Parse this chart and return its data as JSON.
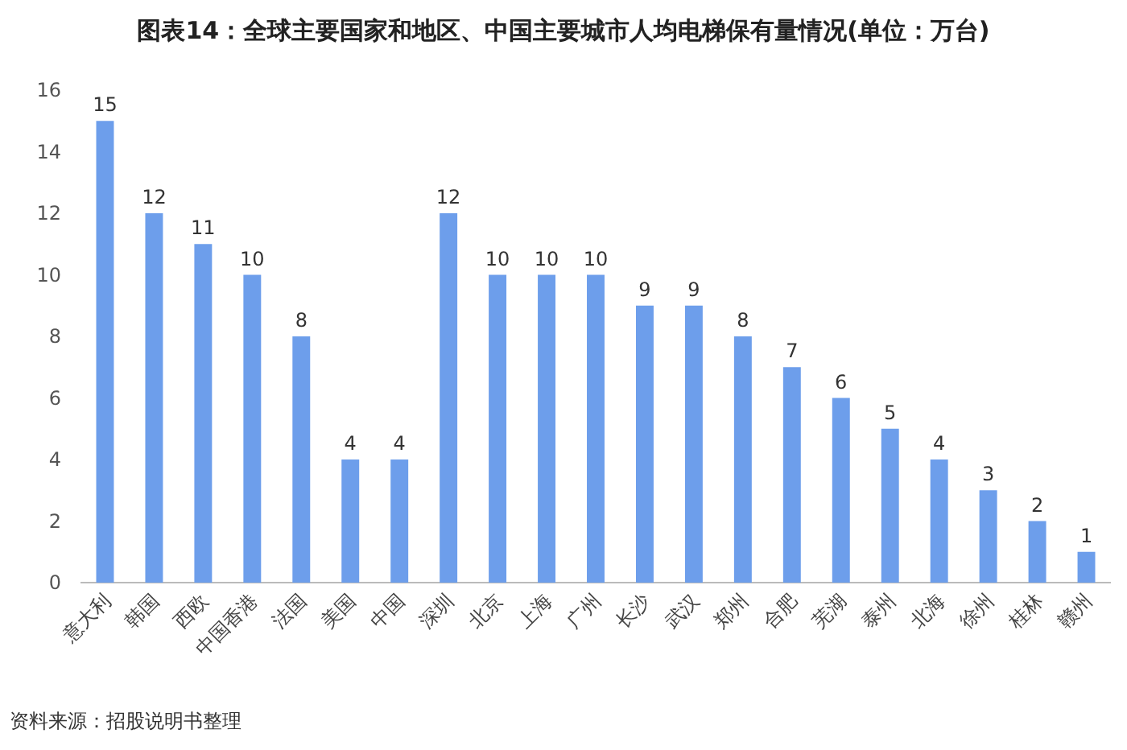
{
  "chart_data": {
    "type": "bar",
    "title": "图表14：全球主要国家和地区、中国主要城市人均电梯保有量情况(单位：万台)",
    "categories": [
      "意大利",
      "韩国",
      "西欧",
      "中国香港",
      "法国",
      "美国",
      "中国",
      "深圳",
      "北京",
      "上海",
      "广州",
      "长沙",
      "武汉",
      "郑州",
      "合肥",
      "芜湖",
      "泰州",
      "北海",
      "徐州",
      "桂林",
      "赣州"
    ],
    "values": [
      15,
      12,
      11,
      10,
      8,
      4,
      4,
      12,
      10,
      10,
      10,
      9,
      9,
      8,
      7,
      6,
      5,
      4,
      3,
      2,
      1
    ],
    "color": "#6d9eeb",
    "ylim": [
      0,
      16
    ],
    "yticks": [
      0,
      2,
      4,
      6,
      8,
      10,
      12,
      14,
      16
    ],
    "data_labels": true,
    "annotations": [
      "资料来源：招股说明书整理"
    ]
  }
}
